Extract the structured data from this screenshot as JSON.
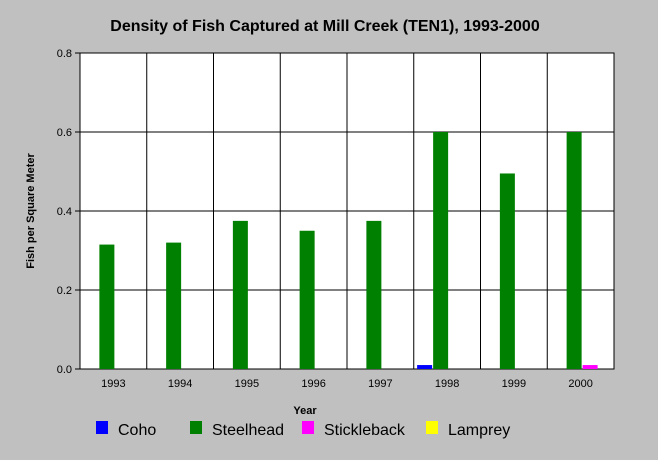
{
  "chart_data": {
    "type": "bar",
    "title": "Density of Fish Captured at Mill Creek (TEN1), 1993-2000",
    "xlabel": "Year",
    "ylabel": "Fish per Square Meter",
    "ylim": [
      0,
      0.8
    ],
    "yticks": [
      "0.0",
      "0.2",
      "0.4",
      "0.6",
      "0.8"
    ],
    "grid": true,
    "legend_position": "bottom",
    "categories": [
      "1993",
      "1994",
      "1995",
      "1996",
      "1997",
      "1998",
      "1999",
      "2000"
    ],
    "series": [
      {
        "name": "Coho",
        "color": "#0000ff",
        "values": [
          0,
          0,
          0,
          0,
          0,
          0.01,
          0,
          0
        ]
      },
      {
        "name": "Steelhead",
        "color": "#008000",
        "values": [
          0.315,
          0.32,
          0.375,
          0.35,
          0.375,
          0.6,
          0.495,
          0.6
        ]
      },
      {
        "name": "Stickleback",
        "color": "#ff00ff",
        "values": [
          0,
          0,
          0,
          0,
          0,
          0,
          0,
          0.01
        ]
      },
      {
        "name": "Lamprey",
        "color": "#ffff00",
        "values": [
          0,
          0,
          0,
          0,
          0,
          0,
          0,
          0
        ]
      }
    ]
  }
}
